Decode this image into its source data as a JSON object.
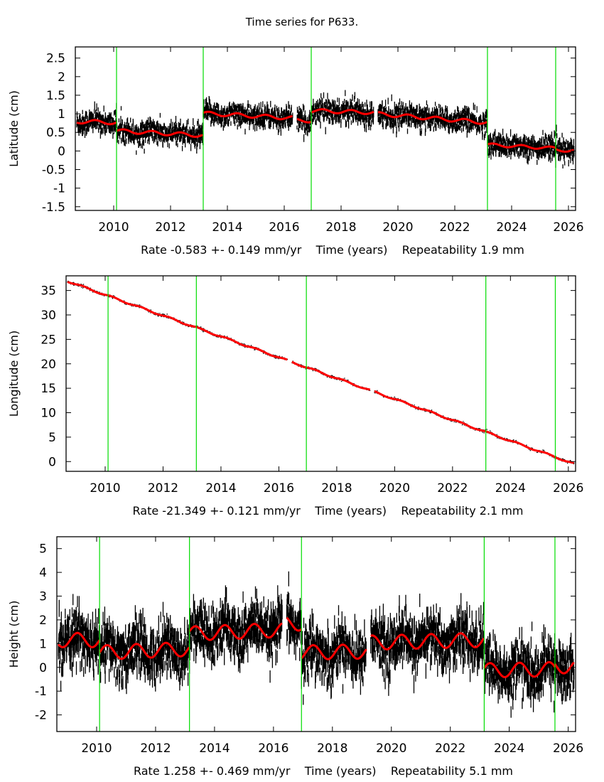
{
  "title": "Time series for P633.",
  "colors": {
    "frame": "#000000",
    "points": "#000000",
    "model": "#ff0000",
    "offset_lines": "#00dd00"
  },
  "chart_data": [
    {
      "type": "scatter",
      "name": "latitude",
      "ylabel": "Latitude (cm)",
      "xlabel": "Rate -0.583 +- 0.149 mm/yr    Time (years)    Repeatability 1.9 mm",
      "rate": "-0.583 +- 0.149 mm/yr",
      "repeatability": "1.9 mm",
      "xlim": [
        2008.65,
        2026.25
      ],
      "ylim": [
        -1.6,
        2.8
      ],
      "xticks": [
        2010,
        2012,
        2014,
        2016,
        2018,
        2020,
        2022,
        2024,
        2026
      ],
      "yticks": [
        -1.5,
        -1,
        -0.5,
        0,
        0.5,
        1,
        1.5,
        2,
        2.5
      ],
      "ytick_labels": [
        "-1.5",
        "-1",
        "-0.5",
        "0",
        "0.5",
        "1",
        "1.5",
        "2",
        "2.5"
      ],
      "offsets": [
        2010.1,
        2013.15,
        2016.95,
        2023.15,
        2025.55
      ],
      "gaps": [
        [
          2016.3,
          2016.45
        ],
        [
          2019.15,
          2019.3
        ]
      ],
      "noise": 0.15,
      "segments": [
        {
          "start": 2008.7,
          "end": 2010.1,
          "mean": 0.78,
          "trend": -0.02,
          "amp": 0.05
        },
        {
          "start": 2010.1,
          "end": 2013.15,
          "mean": 0.48,
          "trend": -0.04,
          "amp": 0.05
        },
        {
          "start": 2013.15,
          "end": 2016.3,
          "mean": 0.95,
          "trend": -0.04,
          "amp": 0.05
        },
        {
          "start": 2016.45,
          "end": 2016.95,
          "mean": 0.82,
          "trend": 0,
          "amp": 0.05
        },
        {
          "start": 2016.95,
          "end": 2019.15,
          "mean": 1.06,
          "trend": -0.02,
          "amp": 0.05
        },
        {
          "start": 2019.3,
          "end": 2023.15,
          "mean": 0.88,
          "trend": -0.06,
          "amp": 0.05
        },
        {
          "start": 2023.15,
          "end": 2025.55,
          "mean": 0.12,
          "trend": -0.04,
          "amp": 0.04
        },
        {
          "start": 2025.55,
          "end": 2026.2,
          "mean": 0.02,
          "trend": -0.05,
          "amp": 0.04
        }
      ]
    },
    {
      "type": "scatter",
      "name": "longitude",
      "ylabel": "Longitude (cm)",
      "xlabel": "Rate -21.349 +- 0.121 mm/yr    Time (years)    Repeatability 2.1 mm",
      "rate": "-21.349 +- 0.121 mm/yr",
      "repeatability": "2.1 mm",
      "xlim": [
        2008.65,
        2026.25
      ],
      "ylim": [
        -2,
        38
      ],
      "xticks": [
        2010,
        2012,
        2014,
        2016,
        2018,
        2020,
        2022,
        2024,
        2026
      ],
      "yticks": [
        0,
        5,
        10,
        15,
        20,
        25,
        30,
        35
      ],
      "ytick_labels": [
        "0",
        "5",
        "10",
        "15",
        "20",
        "25",
        "30",
        "35"
      ],
      "offsets": [
        2010.1,
        2013.15,
        2016.95,
        2023.15,
        2025.55
      ],
      "gaps": [
        [
          2016.3,
          2016.45
        ],
        [
          2019.15,
          2019.3
        ]
      ],
      "noise": 0.25,
      "line_start": [
        2008.7,
        36.9
      ],
      "rate_cm_per_yr": -2.1349,
      "segments": [
        {
          "start": 2008.7,
          "end": 2010.1,
          "mean": 0,
          "trend": 0,
          "amp": 0.15
        },
        {
          "start": 2010.1,
          "end": 2013.15,
          "mean": 0,
          "trend": 0,
          "amp": 0.15
        },
        {
          "start": 2013.15,
          "end": 2016.3,
          "mean": 0,
          "trend": 0,
          "amp": 0.15
        },
        {
          "start": 2016.45,
          "end": 2016.95,
          "mean": 0,
          "trend": 0,
          "amp": 0.15
        },
        {
          "start": 2016.95,
          "end": 2019.15,
          "mean": 0,
          "trend": 0,
          "amp": 0.15
        },
        {
          "start": 2019.3,
          "end": 2023.15,
          "mean": 0,
          "trend": 0,
          "amp": 0.15
        },
        {
          "start": 2023.15,
          "end": 2025.55,
          "mean": 0,
          "trend": 0,
          "amp": 0.15
        },
        {
          "start": 2025.55,
          "end": 2026.2,
          "mean": 0,
          "trend": 0,
          "amp": 0.15
        }
      ]
    },
    {
      "type": "scatter",
      "name": "height",
      "ylabel": "Height (cm)",
      "xlabel": "Rate 1.258 +- 0.469 mm/yr    Time (years)    Repeatability 5.1 mm",
      "rate": "1.258 +- 0.469 mm/yr",
      "repeatability": "5.1 mm",
      "xlim": [
        2008.65,
        2026.25
      ],
      "ylim": [
        -2.7,
        5.5
      ],
      "xticks": [
        2010,
        2012,
        2014,
        2016,
        2018,
        2020,
        2022,
        2024,
        2026
      ],
      "yticks": [
        -2,
        -1,
        0,
        1,
        2,
        3,
        4,
        5
      ],
      "ytick_labels": [
        "-2",
        "-1",
        "0",
        "1",
        "2",
        "3",
        "4",
        "5"
      ],
      "offsets": [
        2010.1,
        2013.15,
        2016.95,
        2023.15,
        2025.55
      ],
      "gaps": [
        [
          2016.3,
          2016.45
        ],
        [
          2019.15,
          2019.3
        ]
      ],
      "noise": 0.55,
      "segments": [
        {
          "start": 2008.7,
          "end": 2010.1,
          "mean": 1.15,
          "trend": 0,
          "amp": 0.3
        },
        {
          "start": 2010.1,
          "end": 2013.15,
          "mean": 0.7,
          "trend": 0.05,
          "amp": 0.3
        },
        {
          "start": 2013.15,
          "end": 2016.3,
          "mean": 1.5,
          "trend": 0.05,
          "amp": 0.3
        },
        {
          "start": 2016.45,
          "end": 2016.95,
          "mean": 1.85,
          "trend": 0,
          "amp": 0.3
        },
        {
          "start": 2016.95,
          "end": 2019.15,
          "mean": 0.65,
          "trend": 0.02,
          "amp": 0.3
        },
        {
          "start": 2019.3,
          "end": 2023.15,
          "mean": 1.1,
          "trend": 0.03,
          "amp": 0.3
        },
        {
          "start": 2023.15,
          "end": 2025.55,
          "mean": -0.1,
          "trend": 0.02,
          "amp": 0.3
        },
        {
          "start": 2025.55,
          "end": 2026.2,
          "mean": 0.05,
          "trend": 0,
          "amp": 0.3
        }
      ]
    }
  ]
}
